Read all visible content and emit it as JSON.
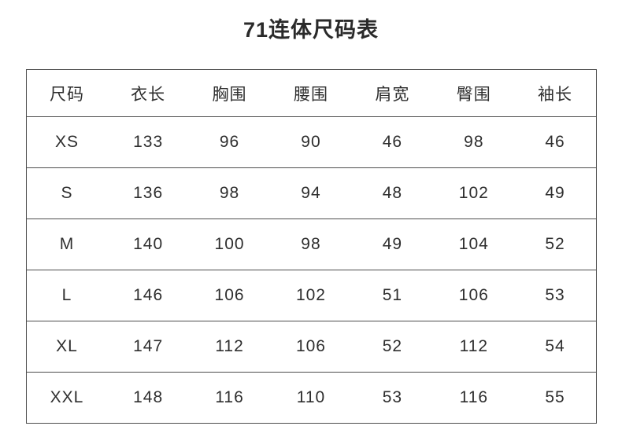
{
  "title": "71连体尺码表",
  "chart_data": {
    "type": "table",
    "title": "71连体尺码表",
    "headers": [
      "尺码",
      "衣长",
      "胸围",
      "腰围",
      "肩宽",
      "臀围",
      "袖长"
    ],
    "rows": [
      [
        "XS",
        "133",
        "96",
        "90",
        "46",
        "98",
        "46"
      ],
      [
        "S",
        "136",
        "98",
        "94",
        "48",
        "102",
        "49"
      ],
      [
        "M",
        "140",
        "100",
        "98",
        "49",
        "104",
        "52"
      ],
      [
        "L",
        "146",
        "106",
        "102",
        "51",
        "106",
        "53"
      ],
      [
        "XL",
        "147",
        "112",
        "106",
        "52",
        "112",
        "54"
      ],
      [
        "XXL",
        "148",
        "116",
        "110",
        "53",
        "116",
        "55"
      ]
    ],
    "layout": {
      "grid": "outer-border-and-horizontal-row-lines-only",
      "columns": 7,
      "header_position": "top"
    }
  },
  "colors": {
    "background": "#ffffff",
    "text": "#2e2e2e",
    "border": "#4d4d4d"
  }
}
